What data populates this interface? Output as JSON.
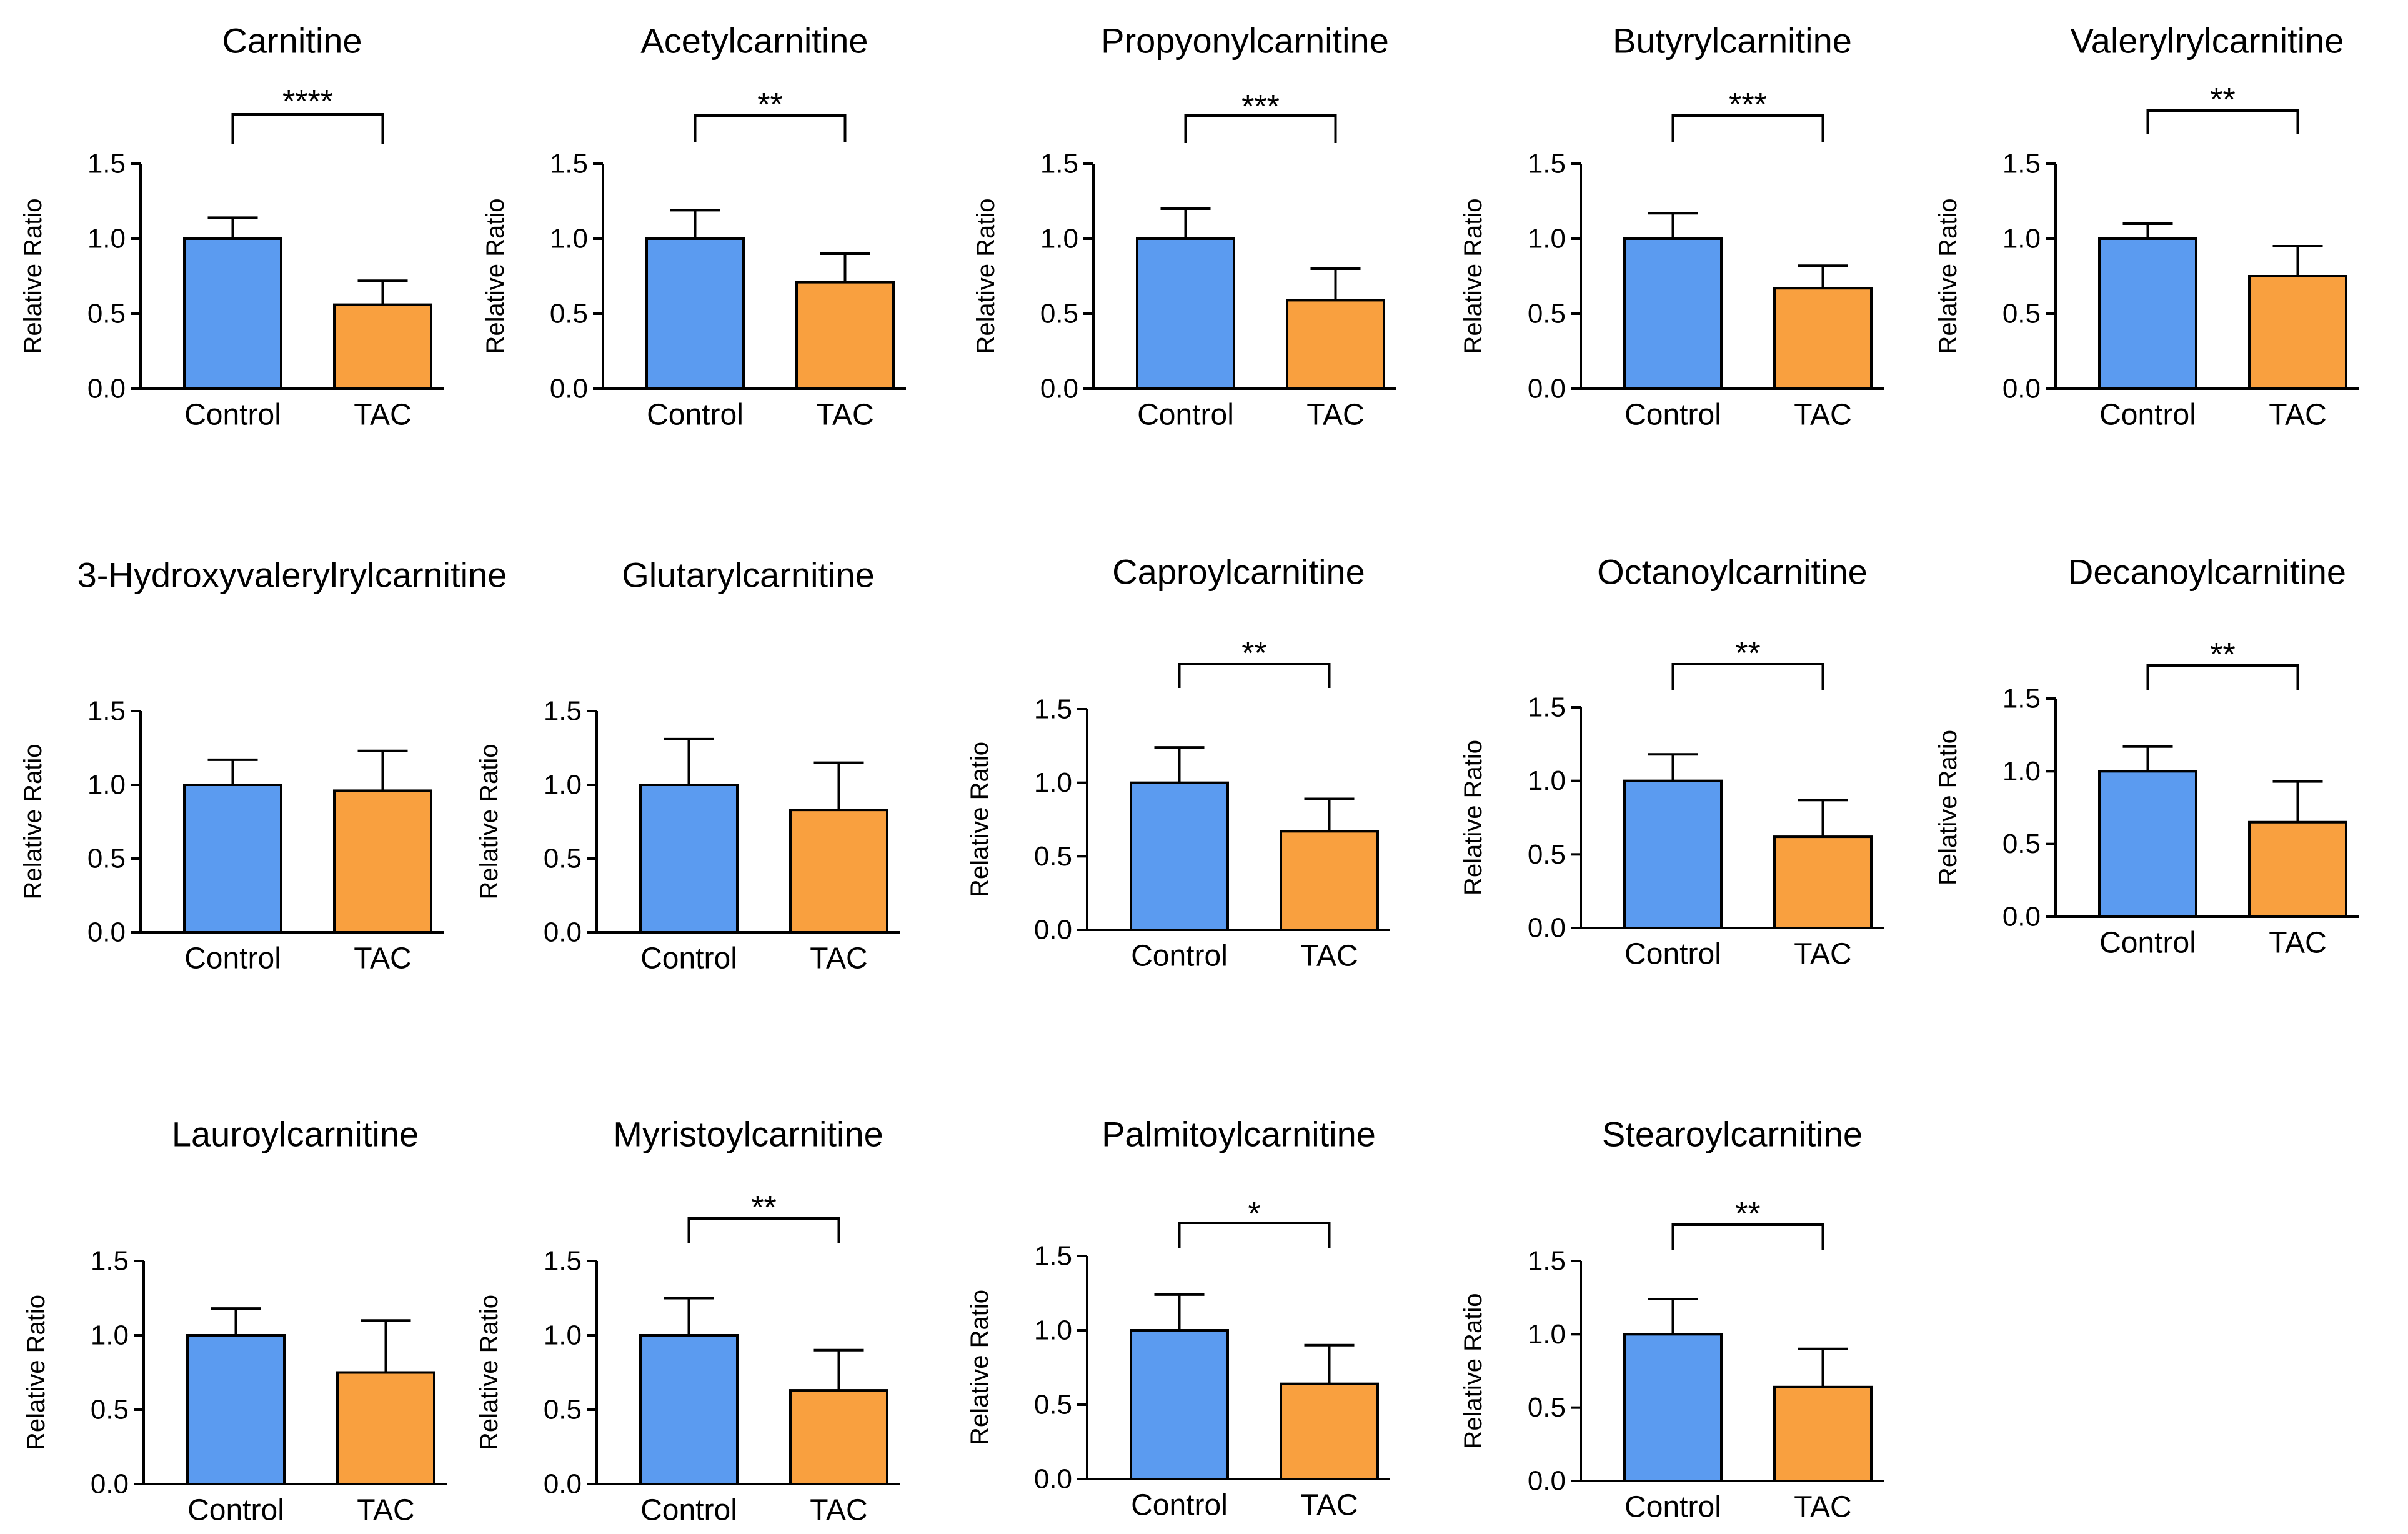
{
  "chart_data": [
    {
      "type": "bar",
      "title": "Carnitine",
      "ylabel": "Relative Ratio",
      "ylim": [
        0,
        1.5
      ],
      "yticks": [
        "0.0",
        "0.5",
        "1.0",
        "1.5"
      ],
      "categories": [
        "Control",
        "TAC"
      ],
      "values": [
        1.0,
        0.56
      ],
      "errors": [
        0.14,
        0.16
      ],
      "colors": [
        "#5b9bf0",
        "#f9a03f"
      ],
      "significance": "****"
    },
    {
      "type": "bar",
      "title": "Acetylcarnitine",
      "ylabel": "Relative Ratio",
      "ylim": [
        0,
        1.5
      ],
      "yticks": [
        "0.0",
        "0.5",
        "1.0",
        "1.5"
      ],
      "categories": [
        "Control",
        "TAC"
      ],
      "values": [
        1.0,
        0.71
      ],
      "errors": [
        0.19,
        0.19
      ],
      "colors": [
        "#5b9bf0",
        "#f9a03f"
      ],
      "significance": "**"
    },
    {
      "type": "bar",
      "title": "Propyonylcarnitine",
      "ylabel": "Relative Ratio",
      "ylim": [
        0,
        1.5
      ],
      "yticks": [
        "0.0",
        "0.5",
        "1.0",
        "1.5"
      ],
      "categories": [
        "Control",
        "TAC"
      ],
      "values": [
        1.0,
        0.59
      ],
      "errors": [
        0.2,
        0.21
      ],
      "colors": [
        "#5b9bf0",
        "#f9a03f"
      ],
      "significance": "***"
    },
    {
      "type": "bar",
      "title": "Butyrylcarnitine",
      "ylabel": "Relative Ratio",
      "ylim": [
        0,
        1.5
      ],
      "yticks": [
        "0.0",
        "0.5",
        "1.0",
        "1.5"
      ],
      "categories": [
        "Control",
        "TAC"
      ],
      "values": [
        1.0,
        0.67
      ],
      "errors": [
        0.17,
        0.15
      ],
      "colors": [
        "#5b9bf0",
        "#f9a03f"
      ],
      "significance": "***"
    },
    {
      "type": "bar",
      "title": "Valerylrylcarnitine",
      "ylabel": "Relative Ratio",
      "ylim": [
        0,
        1.5
      ],
      "yticks": [
        "0.0",
        "0.5",
        "1.0",
        "1.5"
      ],
      "categories": [
        "Control",
        "TAC"
      ],
      "values": [
        1.0,
        0.75
      ],
      "errors": [
        0.1,
        0.2
      ],
      "colors": [
        "#5b9bf0",
        "#f9a03f"
      ],
      "significance": "**"
    },
    {
      "type": "bar",
      "title": "3-Hydroxyvalerylrylcarnitine",
      "ylabel": "Relative Ratio",
      "ylim": [
        0,
        1.5
      ],
      "yticks": [
        "0.0",
        "0.5",
        "1.0",
        "1.5"
      ],
      "categories": [
        "Control",
        "TAC"
      ],
      "values": [
        1.0,
        0.96
      ],
      "errors": [
        0.17,
        0.27
      ],
      "colors": [
        "#5b9bf0",
        "#f9a03f"
      ],
      "significance": ""
    },
    {
      "type": "bar",
      "title": "Glutarylcarnitine",
      "ylabel": "Relative Ratio",
      "ylim": [
        0,
        1.5
      ],
      "yticks": [
        "0.0",
        "0.5",
        "1.0",
        "1.5"
      ],
      "categories": [
        "Control",
        "TAC"
      ],
      "values": [
        1.0,
        0.83
      ],
      "errors": [
        0.31,
        0.32
      ],
      "colors": [
        "#5b9bf0",
        "#f9a03f"
      ],
      "significance": ""
    },
    {
      "type": "bar",
      "title": "Caproylcarnitine",
      "ylabel": "Relative Ratio",
      "ylim": [
        0,
        1.5
      ],
      "yticks": [
        "0.0",
        "0.5",
        "1.0",
        "1.5"
      ],
      "categories": [
        "Control",
        "TAC"
      ],
      "values": [
        1.0,
        0.67
      ],
      "errors": [
        0.24,
        0.22
      ],
      "colors": [
        "#5b9bf0",
        "#f9a03f"
      ],
      "significance": "**"
    },
    {
      "type": "bar",
      "title": "Octanoylcarnitine",
      "ylabel": "Relative Ratio",
      "ylim": [
        0,
        1.5
      ],
      "yticks": [
        "0.0",
        "0.5",
        "1.0",
        "1.5"
      ],
      "categories": [
        "Control",
        "TAC"
      ],
      "values": [
        1.0,
        0.62
      ],
      "errors": [
        0.18,
        0.25
      ],
      "colors": [
        "#5b9bf0",
        "#f9a03f"
      ],
      "significance": "**"
    },
    {
      "type": "bar",
      "title": "Decanoylcarnitine",
      "ylabel": "Relative Ratio",
      "ylim": [
        0,
        1.5
      ],
      "yticks": [
        "0.0",
        "0.5",
        "1.0",
        "1.5"
      ],
      "categories": [
        "Control",
        "TAC"
      ],
      "values": [
        1.0,
        0.65
      ],
      "errors": [
        0.17,
        0.28
      ],
      "colors": [
        "#5b9bf0",
        "#f9a03f"
      ],
      "significance": "**"
    },
    {
      "type": "bar",
      "title": "Lauroylcarnitine",
      "ylabel": "Relative Ratio",
      "ylim": [
        0,
        1.5
      ],
      "yticks": [
        "0.0",
        "0.5",
        "1.0",
        "1.5"
      ],
      "categories": [
        "Control",
        "TAC"
      ],
      "values": [
        1.0,
        0.75
      ],
      "errors": [
        0.18,
        0.35
      ],
      "colors": [
        "#5b9bf0",
        "#f9a03f"
      ],
      "significance": ""
    },
    {
      "type": "bar",
      "title": "Myristoylcarnitine",
      "ylabel": "Relative Ratio",
      "ylim": [
        0,
        1.5
      ],
      "yticks": [
        "0.0",
        "0.5",
        "1.0",
        "1.5"
      ],
      "categories": [
        "Control",
        "TAC"
      ],
      "values": [
        1.0,
        0.63
      ],
      "errors": [
        0.25,
        0.27
      ],
      "colors": [
        "#5b9bf0",
        "#f9a03f"
      ],
      "significance": "**"
    },
    {
      "type": "bar",
      "title": "Palmitoylcarnitine",
      "ylabel": "Relative Ratio",
      "ylim": [
        0,
        1.5
      ],
      "yticks": [
        "0.0",
        "0.5",
        "1.0",
        "1.5"
      ],
      "categories": [
        "Control",
        "TAC"
      ],
      "values": [
        1.0,
        0.64
      ],
      "errors": [
        0.24,
        0.26
      ],
      "colors": [
        "#5b9bf0",
        "#f9a03f"
      ],
      "significance": "*"
    },
    {
      "type": "bar",
      "title": "Stearoylcarnitine",
      "ylabel": "Relative Ratio",
      "ylim": [
        0,
        1.5
      ],
      "yticks": [
        "0.0",
        "0.5",
        "1.0",
        "1.5"
      ],
      "categories": [
        "Control",
        "TAC"
      ],
      "values": [
        1.0,
        0.64
      ],
      "errors": [
        0.24,
        0.26
      ],
      "colors": [
        "#5b9bf0",
        "#f9a03f"
      ],
      "significance": "**"
    }
  ]
}
